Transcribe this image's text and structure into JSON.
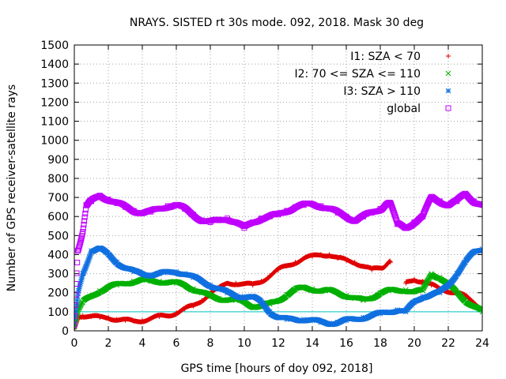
{
  "chart_data": {
    "type": "scatter",
    "title": "NRAYS. SISTED rt 30s mode. 092, 2018. Mask 30 deg",
    "xlabel": "GPS time [hours of doy 092, 2018]",
    "ylabel": "Number of GPS receiver-satellite rays",
    "xlim": [
      0,
      24
    ],
    "ylim": [
      0,
      1500
    ],
    "xticks": [
      0,
      2,
      4,
      6,
      8,
      10,
      12,
      14,
      16,
      18,
      20,
      22,
      24
    ],
    "yticks": [
      0,
      100,
      200,
      300,
      400,
      500,
      600,
      700,
      800,
      900,
      1000,
      1100,
      1200,
      1300,
      1400,
      1500
    ],
    "grid": true,
    "legend_position": "top-right",
    "reference_line": {
      "y": 100,
      "color": "#00c8c8"
    },
    "series": [
      {
        "name": "I1: SZA < 70",
        "marker": "+",
        "color": "#e00000",
        "x": [
          0.0,
          0.25,
          0.5,
          1.0,
          1.5,
          2.0,
          2.5,
          3.0,
          3.5,
          4.0,
          4.5,
          5.0,
          5.5,
          6.0,
          6.5,
          7.0,
          7.5,
          8.0,
          8.5,
          9.0,
          9.5,
          10.0,
          10.5,
          11.0,
          11.5,
          12.0,
          12.5,
          13.0,
          13.5,
          14.0,
          14.5,
          15.0,
          15.5,
          16.0,
          16.5,
          17.0,
          17.5,
          18.0,
          18.6,
          19.0,
          19.5,
          20.0,
          20.5,
          21.0,
          21.5,
          22.0,
          22.5,
          23.0,
          23.5,
          24.0
        ],
        "y": [
          10,
          80,
          80,
          75,
          70,
          70,
          60,
          55,
          50,
          55,
          65,
          75,
          80,
          95,
          115,
          130,
          160,
          200,
          220,
          250,
          250,
          245,
          240,
          260,
          290,
          320,
          340,
          360,
          380,
          390,
          400,
          400,
          380,
          370,
          360,
          340,
          320,
          330,
          360,
          null,
          250,
          270,
          260,
          240,
          220,
          210,
          200,
          180,
          150,
          120
        ]
      },
      {
        "name": "I2: 70 <= SZA <= 110",
        "marker": "x",
        "color": "#00b000",
        "x": [
          0.0,
          0.25,
          0.5,
          1.0,
          1.5,
          2.0,
          2.5,
          3.0,
          3.5,
          4.0,
          4.5,
          5.0,
          5.5,
          6.0,
          6.5,
          7.0,
          7.5,
          8.0,
          8.5,
          9.0,
          9.5,
          10.0,
          10.5,
          11.0,
          11.5,
          12.0,
          12.5,
          13.0,
          13.5,
          14.0,
          14.5,
          15.0,
          15.5,
          16.0,
          16.5,
          17.0,
          17.5,
          18.0,
          18.5,
          19.0,
          19.5,
          20.0,
          20.5,
          21.0,
          21.5,
          22.0,
          22.5,
          23.0,
          23.5,
          24.0
        ],
        "y": [
          20,
          110,
          150,
          180,
          210,
          230,
          240,
          250,
          260,
          265,
          260,
          260,
          255,
          250,
          240,
          220,
          200,
          180,
          170,
          165,
          160,
          150,
          130,
          130,
          140,
          160,
          190,
          215,
          225,
          220,
          210,
          210,
          200,
          185,
          170,
          160,
          175,
          200,
          210,
          210,
          215,
          205,
          210,
          300,
          280,
          240,
          200,
          160,
          130,
          100
        ]
      },
      {
        "name": "I3: SZA > 110",
        "marker": "*",
        "color": "#1070e0",
        "x": [
          0.0,
          0.25,
          0.5,
          1.0,
          1.5,
          2.0,
          2.5,
          3.0,
          3.5,
          4.0,
          4.5,
          5.0,
          5.5,
          6.0,
          6.5,
          7.0,
          7.5,
          8.0,
          8.5,
          9.0,
          9.5,
          10.0,
          10.5,
          11.0,
          11.5,
          12.0,
          12.5,
          13.0,
          13.5,
          14.0,
          14.5,
          15.0,
          15.5,
          16.0,
          16.5,
          17.0,
          17.5,
          18.0,
          18.5,
          19.0,
          19.5,
          20.0,
          20.5,
          21.0,
          21.5,
          22.0,
          22.5,
          23.0,
          23.5,
          24.0
        ],
        "y": [
          40,
          210,
          300,
          420,
          430,
          400,
          360,
          330,
          310,
          300,
          295,
          300,
          305,
          310,
          300,
          280,
          260,
          240,
          220,
          200,
          185,
          180,
          175,
          150,
          100,
          70,
          60,
          60,
          60,
          55,
          45,
          40,
          45,
          55,
          60,
          70,
          80,
          90,
          100,
          110,
          100,
          150,
          180,
          190,
          200,
          240,
          300,
          360,
          410,
          430
        ]
      },
      {
        "name": "global",
        "marker": "square",
        "color": "#c000ff",
        "x": [
          0.0,
          0.2,
          0.5,
          0.7,
          1.0,
          1.5,
          2.0,
          2.5,
          3.0,
          3.5,
          4.0,
          4.5,
          5.0,
          5.5,
          6.0,
          6.5,
          7.0,
          7.5,
          8.0,
          8.5,
          9.0,
          9.5,
          10.0,
          10.5,
          11.0,
          11.5,
          12.0,
          12.5,
          13.0,
          13.5,
          14.0,
          14.5,
          15.0,
          15.5,
          16.0,
          16.5,
          17.0,
          17.5,
          18.0,
          18.6,
          19.0,
          19.5,
          20.0,
          20.5,
          21.0,
          21.5,
          22.0,
          22.5,
          23.0,
          23.5,
          24.0
        ],
        "y": [
          30,
          420,
          520,
          660,
          680,
          710,
          690,
          670,
          650,
          630,
          620,
          625,
          640,
          655,
          660,
          640,
          610,
          580,
          570,
          580,
          590,
          570,
          540,
          570,
          590,
          600,
          610,
          630,
          650,
          660,
          665,
          655,
          640,
          620,
          600,
          580,
          600,
          620,
          640,
          670,
          560,
          540,
          570,
          600,
          700,
          680,
          660,
          680,
          720,
          680,
          660
        ]
      }
    ]
  }
}
